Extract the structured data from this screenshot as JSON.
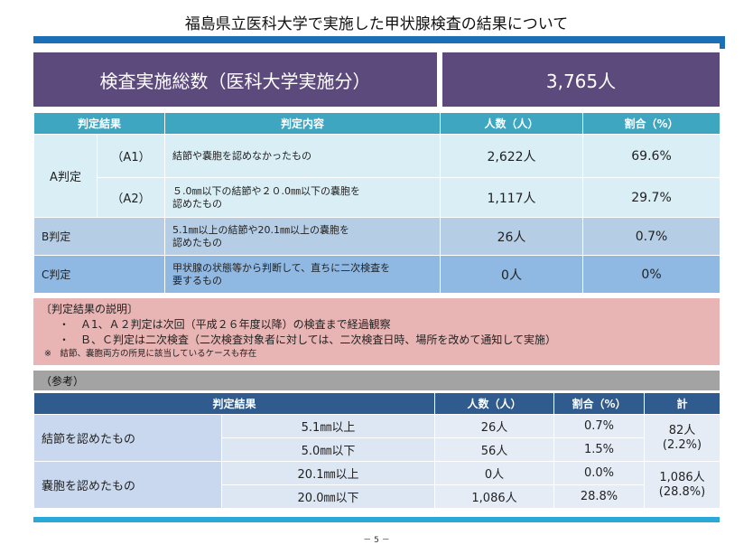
{
  "title": "福島県立医科大学で実施した甲状腺検査の結果について",
  "summary": {
    "label": "検査実施総数（医科大学実施分）",
    "value": "3,765人"
  },
  "table1": {
    "headers": [
      "判定結果",
      "判定内容",
      "人数（人）",
      "割合（%）"
    ],
    "a_label": "A判定",
    "rows": [
      {
        "sub": "（A1）",
        "content": "結節や嚢胞を認めなかったもの",
        "count": "2,622人",
        "ratio": "69.6%"
      },
      {
        "sub": "（A2）",
        "content_l1": "５.0㎜以下の結節や２０.0㎜以下の嚢胞を",
        "content_l2": "認めたもの",
        "count": "1,117人",
        "ratio": "29.7%"
      },
      {
        "label": "B判定",
        "content_l1": "5.1㎜以上の結節や20.1㎜以上の嚢胞を",
        "content_l2": "認めたもの",
        "count": "26人",
        "ratio": "0.7%"
      },
      {
        "label": "C判定",
        "content_l1": "甲状腺の状態等から判断して、直ちに二次検査を",
        "content_l2": "要するもの",
        "count": "0人",
        "ratio": "0%"
      }
    ]
  },
  "notes": {
    "title": "〔判定結果の説明〕",
    "bullets": [
      "・　Ａ1、Ａ２判定は次回（平成２６年度以降）の検査まで経過観察",
      "・　Ｂ、Ｃ判定は二次検査（二次検査対象者に対しては、二次検査日時、場所を改めて通知して実施）"
    ],
    "small": "※　結節、嚢胞両方の所見に該当しているケースも存在"
  },
  "reference": "（参考）",
  "table2": {
    "headers": [
      "判定結果",
      "人数（人）",
      "割合（%）",
      "計"
    ],
    "groups": [
      {
        "label": "結節を認めたもの",
        "total_l1": "82人",
        "total_l2": "(2.2%)",
        "rows": [
          {
            "size": "5.1㎜以上",
            "count": "26人",
            "ratio": "0.7%"
          },
          {
            "size": "5.0㎜以下",
            "count": "56人",
            "ratio": "1.5%"
          }
        ]
      },
      {
        "label": "嚢胞を認めたもの",
        "total_l1": "1,086人",
        "total_l2": "(28.8%)",
        "rows": [
          {
            "size": "20.1㎜以上",
            "count": "0人",
            "ratio": "0.0%"
          },
          {
            "size": "20.0㎜以下",
            "count": "1,086人",
            "ratio": "28.8%"
          }
        ]
      }
    ]
  },
  "page_number": "－ 5 －"
}
